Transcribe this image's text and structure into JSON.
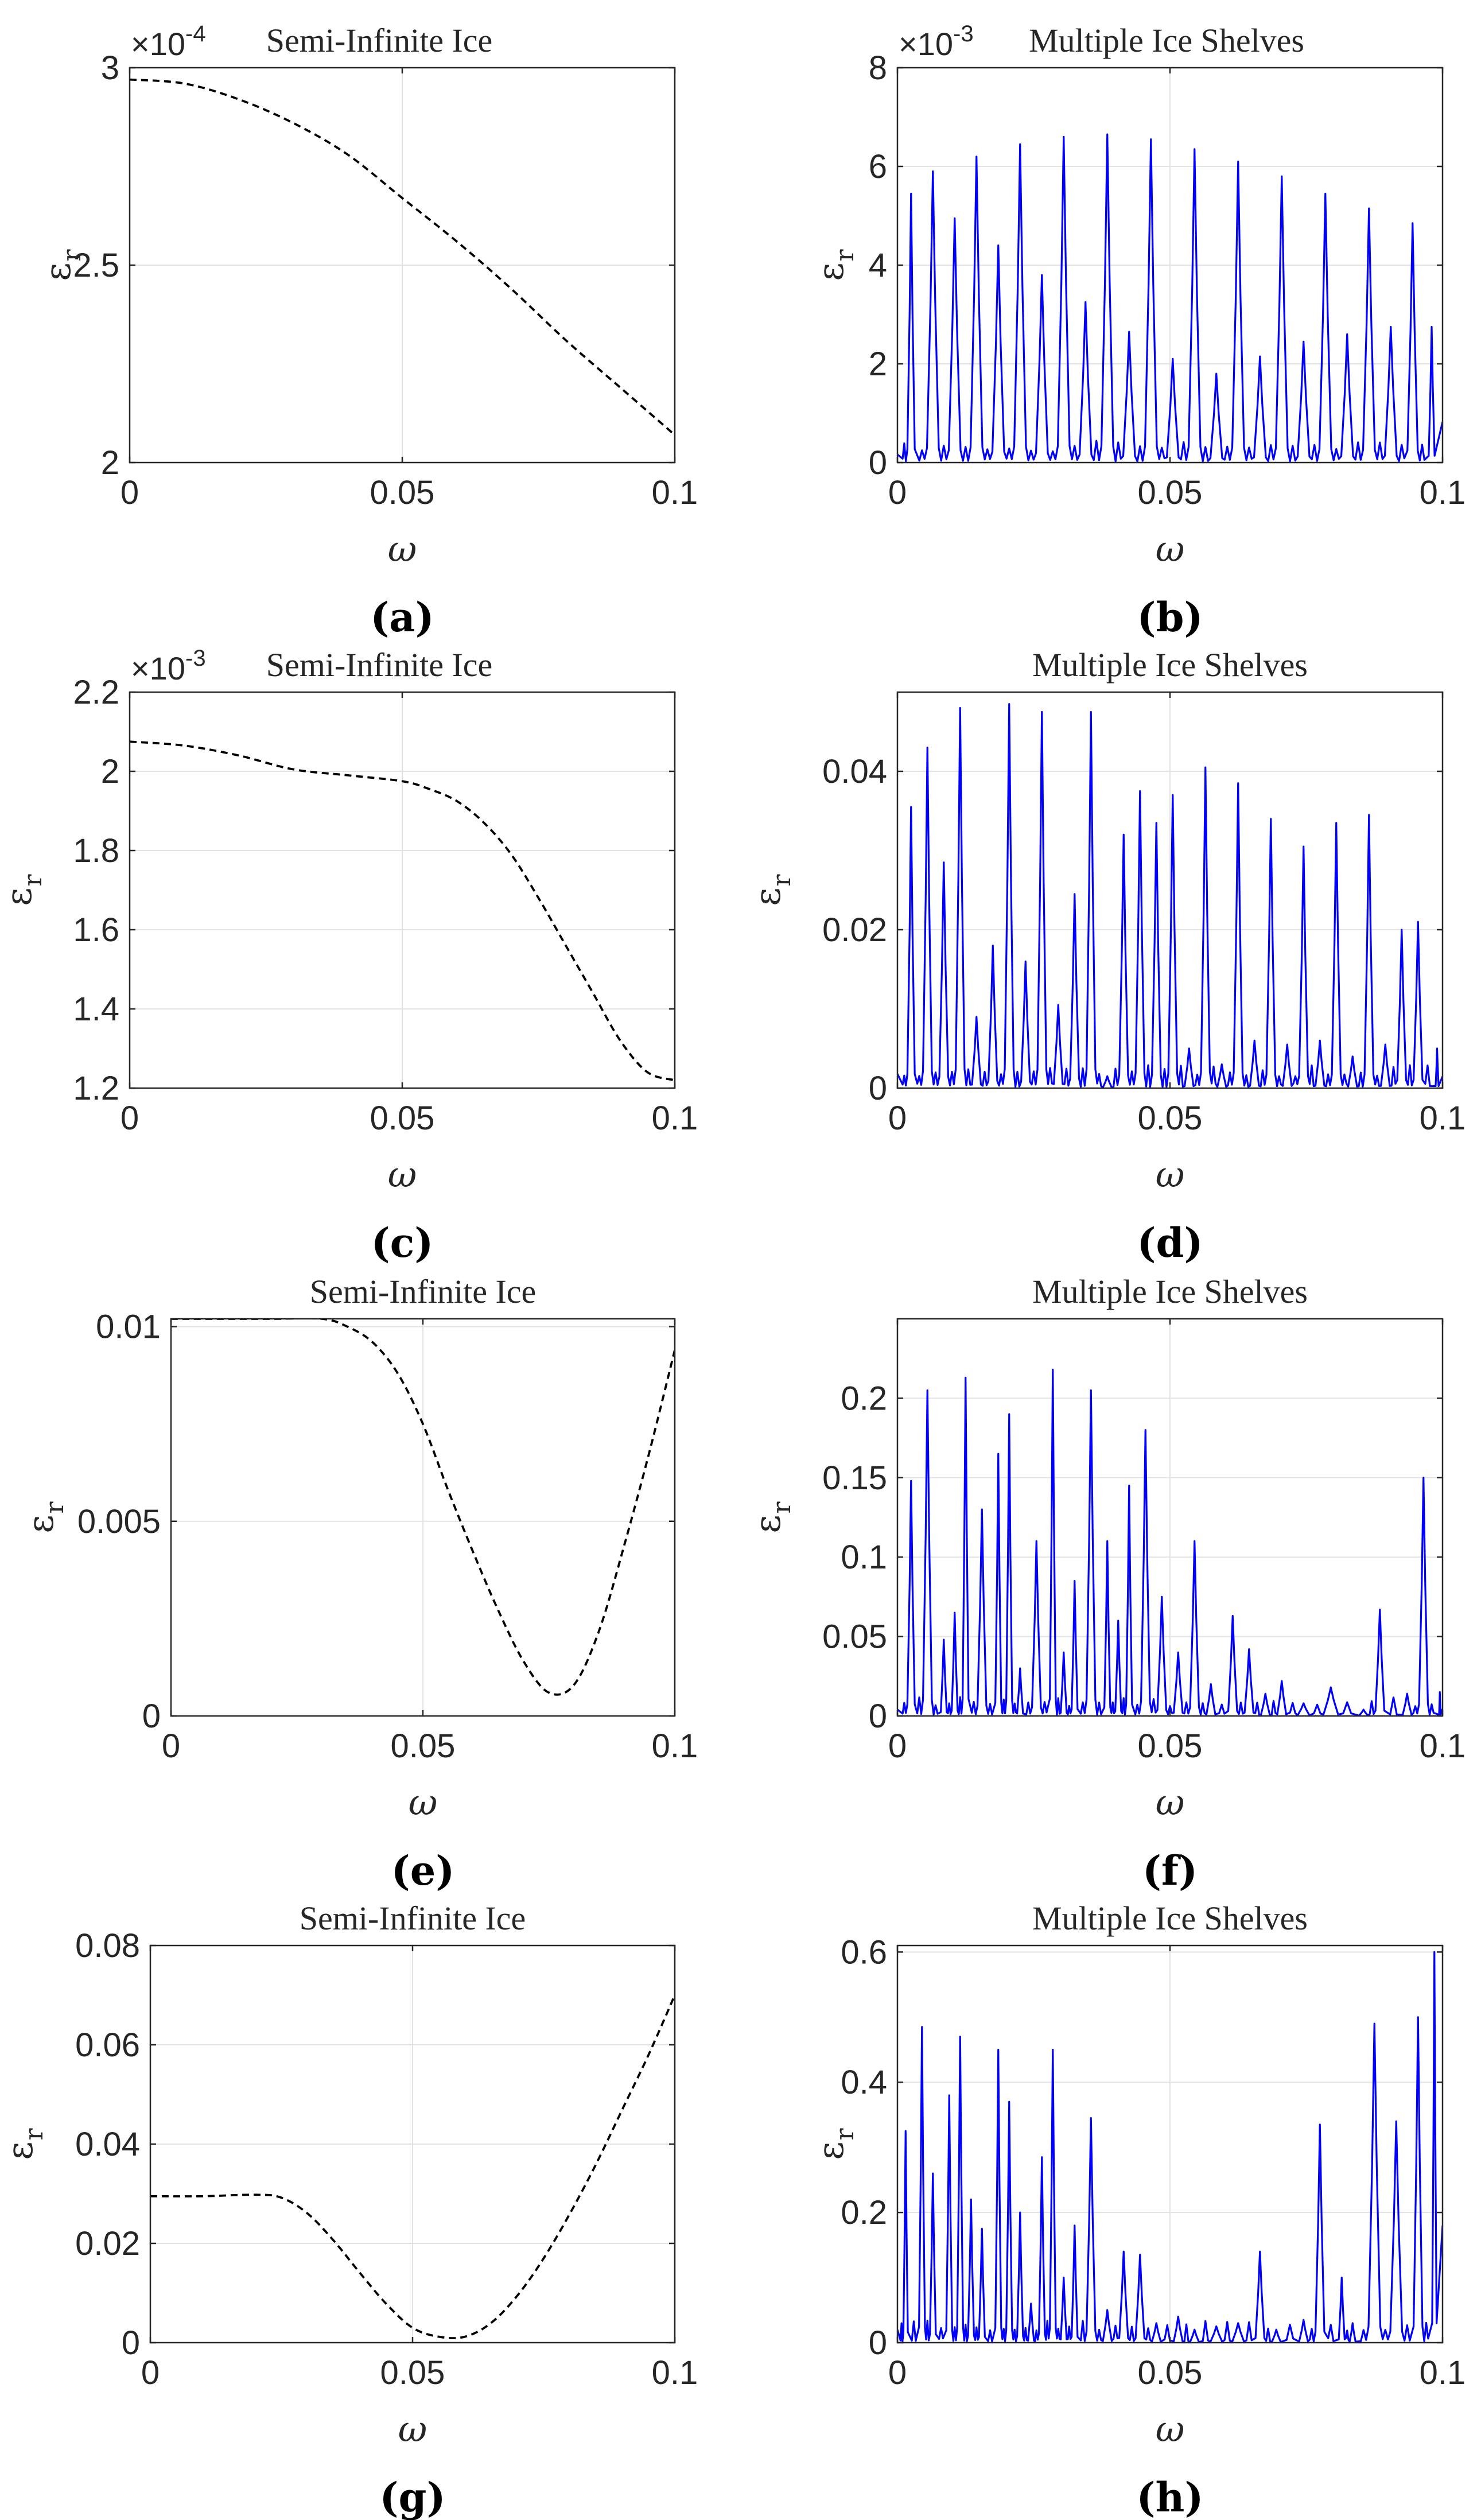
{
  "chart_data": [
    {
      "panel": "(a)",
      "type": "line",
      "title": "Semi-Infinite Ice",
      "xlabel": "ω",
      "ylabel": "ε",
      "ylabel_sub": "r",
      "xlim": [
        0,
        0.1
      ],
      "ylim": [
        2.0,
        3.0
      ],
      "exponent": "×10",
      "exponent_power": "-4",
      "xticks": [
        0,
        0.05,
        0.1
      ],
      "xtick_labels": [
        "0",
        "0.05",
        "0.1"
      ],
      "yticks": [
        2.0,
        2.5,
        3.0
      ],
      "ytick_labels": [
        "2",
        "2.5",
        "3"
      ],
      "grid": true,
      "series": [
        {
          "name": "semi-infinite",
          "style": "dashed",
          "color": "#000000",
          "x": [
            0,
            0.01,
            0.02,
            0.03,
            0.04,
            0.05,
            0.06,
            0.07,
            0.08,
            0.09,
            0.1
          ],
          "values": [
            2.97,
            2.96,
            2.92,
            2.86,
            2.78,
            2.67,
            2.56,
            2.44,
            2.31,
            2.19,
            2.07
          ]
        }
      ]
    },
    {
      "panel": "(b)",
      "type": "line",
      "title": "Multiple Ice Shelves",
      "xlabel": "ω",
      "ylabel": "ε",
      "ylabel_sub": "r",
      "xlim": [
        0,
        0.1
      ],
      "ylim": [
        0,
        8
      ],
      "exponent": "×10",
      "exponent_power": "-3",
      "xticks": [
        0,
        0.05,
        0.1
      ],
      "xtick_labels": [
        "0",
        "0.05",
        "0.1"
      ],
      "yticks": [
        0,
        2,
        4,
        6,
        8
      ],
      "ytick_labels": [
        "0",
        "2",
        "4",
        "6",
        "8"
      ],
      "grid": true,
      "baseline_noise": 0.45,
      "series": [
        {
          "name": "multiple",
          "style": "solid",
          "color": "#0000ff",
          "peak_x": [
            0.0025,
            0.0065,
            0.0105,
            0.0145,
            0.0185,
            0.0225,
            0.0265,
            0.0305,
            0.0345,
            0.0385,
            0.0425,
            0.0465,
            0.0505,
            0.0545,
            0.0585,
            0.0625,
            0.0665,
            0.0705,
            0.0745,
            0.0785,
            0.0825,
            0.0865,
            0.0905,
            0.0945,
            0.098
          ],
          "peak_y": [
            5.45,
            5.9,
            4.95,
            6.2,
            4.4,
            6.45,
            3.8,
            6.6,
            3.25,
            6.65,
            2.65,
            6.55,
            2.1,
            6.35,
            1.8,
            6.1,
            2.15,
            5.8,
            2.45,
            5.45,
            2.6,
            5.15,
            2.75,
            4.85,
            2.75
          ]
        }
      ]
    },
    {
      "panel": "(c)",
      "type": "line",
      "title": "Semi-Infinite Ice",
      "xlabel": "ω",
      "ylabel": "ε",
      "ylabel_sub": "r",
      "xlim": [
        0,
        0.1
      ],
      "ylim": [
        1.2,
        2.2
      ],
      "exponent": "×10",
      "exponent_power": "-3",
      "xticks": [
        0,
        0.05,
        0.1
      ],
      "xtick_labels": [
        "0",
        "0.05",
        "0.1"
      ],
      "yticks": [
        1.2,
        1.4,
        1.6,
        1.8,
        2.0,
        2.2
      ],
      "ytick_labels": [
        "1.2",
        "1.4",
        "1.6",
        "1.8",
        "2",
        "2.2"
      ],
      "grid": true,
      "series": [
        {
          "name": "semi-infinite",
          "style": "dashed",
          "color": "#000000",
          "x": [
            0,
            0.01,
            0.02,
            0.03,
            0.04,
            0.05,
            0.055,
            0.06,
            0.065,
            0.07,
            0.075,
            0.08,
            0.085,
            0.09,
            0.095,
            0.1
          ],
          "values": [
            2.075,
            2.065,
            2.04,
            2.005,
            1.99,
            1.975,
            1.955,
            1.925,
            1.87,
            1.79,
            1.68,
            1.56,
            1.44,
            1.32,
            1.24,
            1.22
          ]
        }
      ]
    },
    {
      "panel": "(d)",
      "type": "line",
      "title": "Multiple Ice Shelves",
      "xlabel": "ω",
      "ylabel": "ε",
      "ylabel_sub": "r",
      "xlim": [
        0,
        0.1
      ],
      "ylim": [
        0,
        0.05
      ],
      "xticks": [
        0,
        0.05,
        0.1
      ],
      "xtick_labels": [
        "0",
        "0.05",
        "0.1"
      ],
      "yticks": [
        0,
        0.02,
        0.04
      ],
      "ytick_labels": [
        "0",
        "0.02",
        "0.04"
      ],
      "grid": true,
      "baseline_noise": 0.003,
      "series": [
        {
          "name": "multiple",
          "style": "solid",
          "color": "#0000ff",
          "peak_x": [
            0.0025,
            0.0055,
            0.0085,
            0.0115,
            0.0145,
            0.0175,
            0.0205,
            0.0235,
            0.0265,
            0.0295,
            0.0325,
            0.0355,
            0.0385,
            0.0415,
            0.0445,
            0.0475,
            0.0505,
            0.0535,
            0.0565,
            0.0595,
            0.0625,
            0.0655,
            0.0685,
            0.0715,
            0.0745,
            0.0775,
            0.0805,
            0.0835,
            0.0865,
            0.0895,
            0.0925,
            0.0955,
            0.099
          ],
          "peak_y": [
            0.0355,
            0.043,
            0.0285,
            0.048,
            0.009,
            0.018,
            0.0485,
            0.016,
            0.0475,
            0.0105,
            0.0245,
            0.0475,
            0.0015,
            0.032,
            0.0375,
            0.0335,
            0.037,
            0.005,
            0.0405,
            0.003,
            0.0385,
            0.006,
            0.034,
            0.0055,
            0.0305,
            0.006,
            0.0335,
            0.004,
            0.0345,
            0.0055,
            0.02,
            0.021,
            0.005
          ]
        }
      ]
    },
    {
      "panel": "(e)",
      "type": "line",
      "title": "Semi-Infinite Ice",
      "xlabel": "ω",
      "ylabel": "ε",
      "ylabel_sub": "r",
      "xlim": [
        0,
        0.1
      ],
      "ylim": [
        0,
        0.0102
      ],
      "xticks": [
        0,
        0.05,
        0.1
      ],
      "xtick_labels": [
        "0",
        "0.05",
        "0.1"
      ],
      "yticks": [
        0,
        0.005,
        0.01
      ],
      "ytick_labels": [
        "0",
        "0.005",
        "0.01"
      ],
      "grid": true,
      "series": [
        {
          "name": "semi-infinite",
          "style": "dashed",
          "color": "#000000",
          "x": [
            0,
            0.01,
            0.02,
            0.03,
            0.035,
            0.04,
            0.045,
            0.05,
            0.055,
            0.06,
            0.065,
            0.07,
            0.075,
            0.08,
            0.085,
            0.09,
            0.095,
            0.1
          ],
          "values": [
            0.0102,
            0.0102,
            0.0102,
            0.0102,
            0.01,
            0.0096,
            0.0088,
            0.0075,
            0.0058,
            0.0042,
            0.0027,
            0.0014,
            0.0006,
            0.0008,
            0.0022,
            0.0044,
            0.0068,
            0.0094
          ]
        }
      ]
    },
    {
      "panel": "(f)",
      "type": "line",
      "title": "Multiple Ice Shelves",
      "xlabel": "ω",
      "ylabel": "ε",
      "ylabel_sub": "r",
      "xlim": [
        0,
        0.1
      ],
      "ylim": [
        0,
        0.25
      ],
      "xticks": [
        0,
        0.05,
        0.1
      ],
      "xtick_labels": [
        "0",
        "0.05",
        "0.1"
      ],
      "yticks": [
        0,
        0.05,
        0.1,
        0.15,
        0.2
      ],
      "ytick_labels": [
        "0",
        "0.05",
        "0.1",
        "0.15",
        "0.2"
      ],
      "grid": true,
      "baseline_noise": 0.012,
      "series": [
        {
          "name": "multiple",
          "style": "solid",
          "color": "#0000ff",
          "peak_x": [
            0.0025,
            0.0055,
            0.0085,
            0.0105,
            0.0125,
            0.0155,
            0.0185,
            0.0205,
            0.0225,
            0.0255,
            0.0285,
            0.0305,
            0.0325,
            0.0355,
            0.0385,
            0.0405,
            0.0425,
            0.0455,
            0.0485,
            0.0515,
            0.0545,
            0.0575,
            0.0615,
            0.0645,
            0.0675,
            0.0705,
            0.0745,
            0.0795,
            0.0855,
            0.0885,
            0.0935,
            0.0965,
            0.0995
          ],
          "peak_y": [
            0.148,
            0.205,
            0.048,
            0.065,
            0.213,
            0.13,
            0.165,
            0.19,
            0.03,
            0.11,
            0.218,
            0.04,
            0.085,
            0.205,
            0.11,
            0.06,
            0.145,
            0.18,
            0.075,
            0.04,
            0.11,
            0.02,
            0.063,
            0.042,
            0.014,
            0.022,
            0.008,
            0.018,
            0.004,
            0.067,
            0.014,
            0.15,
            0.015
          ]
        }
      ]
    },
    {
      "panel": "(g)",
      "type": "line",
      "title": "Semi-Infinite Ice",
      "xlabel": "ω",
      "ylabel": "ε",
      "ylabel_sub": "r",
      "xlim": [
        0,
        0.1
      ],
      "ylim": [
        0,
        0.08
      ],
      "xticks": [
        0,
        0.05,
        0.1
      ],
      "xtick_labels": [
        "0",
        "0.05",
        "0.1"
      ],
      "yticks": [
        0,
        0.02,
        0.04,
        0.06,
        0.08
      ],
      "ytick_labels": [
        "0",
        "0.02",
        "0.04",
        "0.06",
        "0.08"
      ],
      "grid": true,
      "series": [
        {
          "name": "semi-infinite",
          "style": "dashed",
          "color": "#000000",
          "x": [
            0,
            0.01,
            0.02,
            0.025,
            0.03,
            0.035,
            0.04,
            0.045,
            0.05,
            0.055,
            0.06,
            0.065,
            0.07,
            0.075,
            0.08,
            0.085,
            0.09,
            0.095,
            0.1
          ],
          "values": [
            0.0295,
            0.0295,
            0.0298,
            0.0292,
            0.026,
            0.0205,
            0.014,
            0.0078,
            0.003,
            0.0012,
            0.0012,
            0.004,
            0.0095,
            0.017,
            0.026,
            0.036,
            0.047,
            0.058,
            0.07
          ]
        }
      ]
    },
    {
      "panel": "(h)",
      "type": "line",
      "title": "Multiple Ice Shelves",
      "xlabel": "ω",
      "ylabel": "ε",
      "ylabel_sub": "r",
      "xlim": [
        0,
        0.1
      ],
      "ylim": [
        0,
        0.61
      ],
      "xticks": [
        0,
        0.05,
        0.1
      ],
      "xtick_labels": [
        "0",
        "0.05",
        "0.1"
      ],
      "yticks": [
        0,
        0.2,
        0.4,
        0.6
      ],
      "ytick_labels": [
        "0",
        "0.2",
        "0.4",
        "0.6"
      ],
      "grid": true,
      "baseline_noise": 0.035,
      "series": [
        {
          "name": "multiple",
          "style": "solid",
          "color": "#0000ff",
          "peak_x": [
            0.0015,
            0.0045,
            0.0065,
            0.0095,
            0.0115,
            0.0135,
            0.0155,
            0.0185,
            0.0205,
            0.0225,
            0.0245,
            0.0265,
            0.0285,
            0.0305,
            0.0325,
            0.0355,
            0.0385,
            0.0415,
            0.0445,
            0.0475,
            0.0515,
            0.0545,
            0.0585,
            0.0625,
            0.0665,
            0.0695,
            0.0745,
            0.0775,
            0.0815,
            0.0835,
            0.0875,
            0.0915,
            0.0955,
            0.0985
          ],
          "peak_y": [
            0.325,
            0.485,
            0.26,
            0.38,
            0.47,
            0.22,
            0.175,
            0.45,
            0.37,
            0.2,
            0.06,
            0.285,
            0.45,
            0.1,
            0.18,
            0.345,
            0.05,
            0.14,
            0.135,
            0.03,
            0.04,
            0.02,
            0.025,
            0.03,
            0.14,
            0.02,
            0.035,
            0.335,
            0.1,
            0.03,
            0.49,
            0.34,
            0.5,
            0.6
          ]
        }
      ]
    }
  ]
}
